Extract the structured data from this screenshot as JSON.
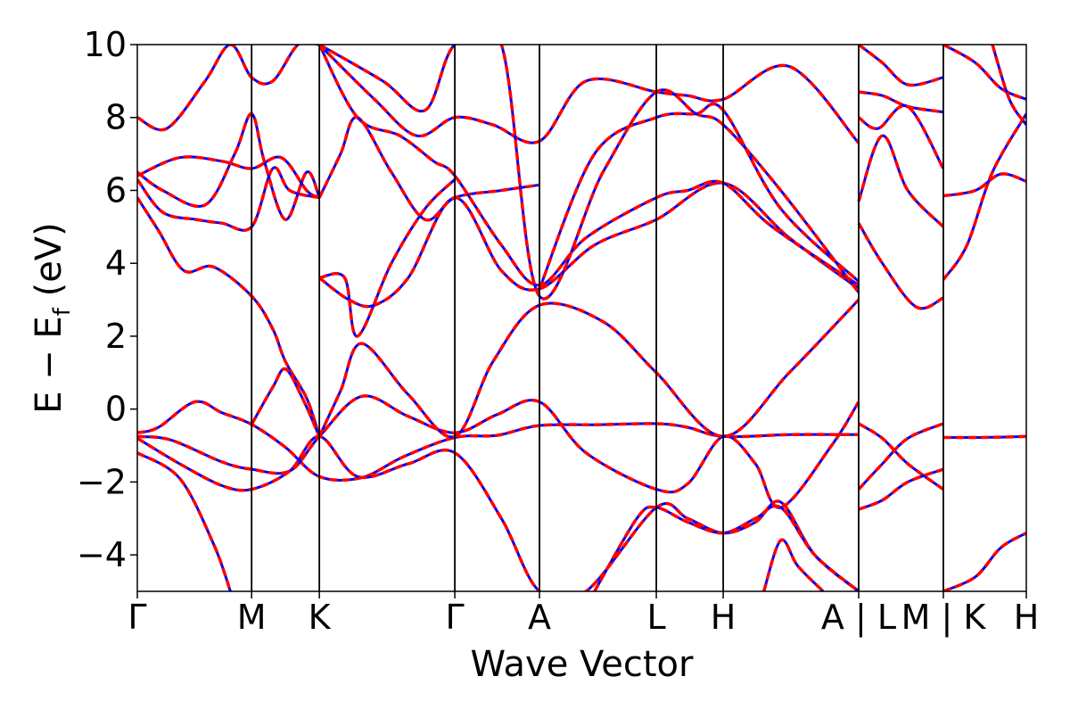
{
  "chart_data": {
    "type": "line",
    "title": "",
    "xlabel": "Wave Vector",
    "ylabel_main": "E − E",
    "ylabel_sub": "f",
    "ylabel_unit": " (eV)",
    "ylim": [
      -5,
      10
    ],
    "yticks": [
      -4,
      -2,
      0,
      2,
      4,
      6,
      8,
      10
    ],
    "ytick_labels": [
      "−4",
      "−2",
      "0",
      "2",
      "4",
      "6",
      "8",
      "10"
    ],
    "x_range": [
      0,
      10.5
    ],
    "high_symmetry_points": [
      {
        "x": 0.0,
        "label": "Γ"
      },
      {
        "x": 1.35,
        "label": "M"
      },
      {
        "x": 2.15,
        "label": "K"
      },
      {
        "x": 3.75,
        "label": "Γ"
      },
      {
        "x": 4.75,
        "label": "A"
      },
      {
        "x": 6.13,
        "label": "L"
      },
      {
        "x": 6.92,
        "label": "H"
      },
      {
        "x": 8.52,
        "label": "A | L"
      },
      {
        "x": 9.52,
        "label": "M | K"
      },
      {
        "x": 10.5,
        "label": "H"
      }
    ],
    "series_colors": {
      "reference": "#0000ff",
      "overlay": "#ff0000"
    },
    "bands": [
      {
        "name": "",
        "x": [
          0,
          0.25,
          0.68,
          1.0,
          1.35,
          1.75,
          2.15,
          2.65,
          3.15,
          3.75,
          4.25,
          4.75,
          5.45,
          6.13,
          6.5,
          6.92,
          7.72,
          8.52
        ],
        "y": [
          -0.65,
          -0.5,
          0.2,
          -0.1,
          -0.42,
          -1.05,
          -1.85,
          -1.88,
          -1.3,
          -0.78,
          -0.72,
          -0.45,
          -0.43,
          -0.4,
          -0.5,
          -0.75,
          -0.7,
          -0.7
        ]
      },
      {
        "name": "",
        "x": [
          0,
          0.4,
          1.0,
          1.35,
          1.8,
          2.15,
          2.65,
          3.2,
          3.75,
          4.25,
          4.75,
          5.3,
          6.13,
          6.5,
          6.92,
          7.3,
          7.6,
          8.2,
          8.52
        ],
        "y": [
          -0.75,
          -0.85,
          -1.45,
          -1.65,
          -1.7,
          -0.75,
          0.35,
          -0.2,
          -0.65,
          -0.15,
          0.2,
          -1.2,
          -2.2,
          -2.05,
          -0.75,
          -1.5,
          -2.7,
          -1.0,
          0.2
        ]
      },
      {
        "name": "",
        "x": [
          0,
          0.5,
          1.0,
          1.35,
          1.8,
          2.15,
          2.6,
          3.2,
          3.75,
          4.3,
          4.75,
          5.3,
          6.13,
          6.5,
          6.92,
          7.3,
          7.6,
          8.0,
          8.52
        ],
        "y": [
          -0.8,
          -1.5,
          -2.1,
          -2.2,
          -1.7,
          -0.75,
          -1.85,
          -1.5,
          -1.2,
          -3.0,
          -5.0,
          -5.0,
          -2.7,
          -3.0,
          -3.4,
          -3.1,
          -2.55,
          -4.0,
          -5.0
        ]
      },
      {
        "name": "",
        "x": [
          0,
          0.5,
          0.9,
          1.1
        ],
        "y": [
          -1.2,
          -1.9,
          -3.7,
          -5.0
        ]
      },
      {
        "name": "",
        "x": [
          0,
          0.25,
          0.55,
          0.9,
          1.35,
          1.6,
          1.75,
          2.0,
          2.15
        ],
        "y": [
          5.8,
          4.9,
          3.8,
          3.9,
          3.1,
          2.2,
          1.3,
          0.3,
          -0.75
        ]
      },
      {
        "name": "",
        "x": [
          1.35,
          1.6,
          1.75,
          1.95,
          2.15
        ],
        "y": [
          -0.42,
          0.6,
          1.1,
          0.3,
          -0.75
        ]
      },
      {
        "name": "",
        "x": [
          2.15,
          2.4,
          2.65,
          3.2,
          3.75,
          4.2,
          4.75,
          5.5,
          6.13,
          6.92,
          7.7,
          8.52
        ],
        "y": [
          -0.75,
          0.5,
          1.8,
          0.4,
          -0.75,
          1.3,
          2.85,
          2.4,
          1.0,
          -0.75,
          1.0,
          3.0
        ]
      },
      {
        "name": "",
        "x": [
          2.15,
          2.5,
          2.8,
          3.2,
          3.75,
          4.3,
          4.75,
          5.4,
          6.13,
          6.92,
          7.7,
          8.52
        ],
        "y": [
          3.6,
          3.0,
          2.85,
          3.6,
          5.8,
          3.8,
          3.3,
          4.5,
          5.2,
          6.2,
          4.7,
          3.3
        ]
      },
      {
        "name": "",
        "x": [
          2.15,
          2.45,
          2.6,
          3.0,
          3.4,
          3.75
        ],
        "y": [
          3.6,
          3.6,
          2.0,
          4.0,
          5.5,
          6.3
        ]
      },
      {
        "name": "",
        "x": [
          0,
          0.3,
          0.7,
          1.0,
          1.35,
          1.6,
          1.8,
          2.15
        ],
        "y": [
          6.3,
          5.4,
          5.2,
          5.1,
          5.0,
          6.6,
          6.0,
          5.8
        ]
      },
      {
        "name": "",
        "x": [
          0,
          0.5,
          1.0,
          1.35,
          1.7,
          2.0,
          2.15
        ],
        "y": [
          6.4,
          6.9,
          6.8,
          6.6,
          6.9,
          6.0,
          5.8
        ]
      },
      {
        "name": "",
        "x": [
          0,
          0.3,
          0.8,
          1.15,
          1.35,
          1.5,
          1.75,
          2.0,
          2.15
        ],
        "y": [
          6.5,
          6.0,
          5.6,
          7.0,
          8.1,
          6.8,
          5.2,
          6.5,
          5.8
        ]
      },
      {
        "name": "",
        "x": [
          0,
          0.35,
          0.8,
          1.1,
          1.35,
          1.6,
          1.9,
          2.15
        ],
        "y": [
          8.0,
          7.7,
          9.0,
          10.0,
          9.1,
          9.0,
          10.0,
          10.0
        ]
      },
      {
        "name": "",
        "x": [
          2.15,
          2.4,
          2.6,
          3.0,
          3.4,
          3.75,
          4.3,
          4.75
        ],
        "y": [
          5.8,
          7.0,
          8.0,
          6.5,
          5.2,
          5.8,
          6.0,
          6.15
        ]
      },
      {
        "name": "",
        "x": [
          2.15,
          2.6,
          3.1,
          3.5,
          3.75,
          4.3,
          4.75,
          5.3,
          6.13,
          6.5,
          6.92,
          7.5,
          8.52
        ],
        "y": [
          10.0,
          8.0,
          7.5,
          6.8,
          6.4,
          4.5,
          3.4,
          4.7,
          5.8,
          6.0,
          6.2,
          5.0,
          3.4
        ]
      },
      {
        "name": "",
        "x": [
          2.15,
          2.8,
          3.3,
          3.75,
          4.2,
          4.75,
          5.3,
          6.13,
          6.5,
          6.92,
          7.7,
          8.52
        ],
        "y": [
          10.0,
          8.5,
          7.5,
          8.0,
          7.8,
          7.35,
          9.0,
          8.7,
          8.6,
          8.5,
          9.4,
          7.3
        ]
      },
      {
        "name": "",
        "x": [
          2.15,
          2.9,
          3.4,
          3.75,
          4.3,
          4.75,
          5.5,
          6.13,
          6.6,
          6.92,
          7.6,
          8.52
        ],
        "y": [
          10.0,
          9.0,
          8.2,
          10.0,
          10.0,
          3.1,
          6.5,
          8.7,
          8.1,
          7.8,
          6.0,
          3.2
        ]
      },
      {
        "name": "",
        "x": [
          4.75,
          5.4,
          6.13,
          6.6,
          6.92,
          7.6,
          8.52
        ],
        "y": [
          3.3,
          7.0,
          8.0,
          8.1,
          8.2,
          5.5,
          3.5
        ]
      },
      {
        "name": "",
        "x": [
          5.4,
          5.9,
          6.13,
          6.5,
          6.92,
          7.3,
          7.6,
          8.0,
          8.52
        ],
        "y": [
          -5.0,
          -3.0,
          -2.7,
          -3.1,
          -3.4,
          -3.0,
          -2.7,
          -4.0,
          -5.0
        ]
      },
      {
        "name": "",
        "x": [
          7.4,
          7.6,
          7.8,
          8.1
        ],
        "y": [
          -5.0,
          -3.6,
          -4.3,
          -5.0
        ]
      },
      {
        "name": "",
        "x": [
          8.52,
          8.8,
          9.1,
          9.52
        ],
        "y": [
          -0.4,
          -0.8,
          -1.5,
          -2.2
        ]
      },
      {
        "name": "",
        "x": [
          8.52,
          8.8,
          9.1,
          9.52
        ],
        "y": [
          -2.2,
          -1.5,
          -0.8,
          -0.4
        ]
      },
      {
        "name": "",
        "x": [
          8.52,
          8.8,
          9.1,
          9.52
        ],
        "y": [
          -2.75,
          -2.5,
          -2.0,
          -1.65
        ]
      },
      {
        "name": "",
        "x": [
          8.52,
          8.8,
          9.2,
          9.52
        ],
        "y": [
          5.1,
          4.0,
          2.8,
          3.05
        ]
      },
      {
        "name": "",
        "x": [
          8.52,
          8.8,
          9.1,
          9.52
        ],
        "y": [
          5.7,
          7.5,
          6.0,
          5.0
        ]
      },
      {
        "name": "",
        "x": [
          8.52,
          8.75,
          9.1,
          9.52
        ],
        "y": [
          8.0,
          7.7,
          8.3,
          6.6
        ]
      },
      {
        "name": "",
        "x": [
          8.52,
          8.8,
          9.1,
          9.52
        ],
        "y": [
          8.7,
          8.6,
          8.3,
          8.15
        ]
      },
      {
        "name": "",
        "x": [
          8.52,
          8.8,
          9.1,
          9.52
        ],
        "y": [
          10.0,
          9.5,
          8.9,
          9.1
        ]
      },
      {
        "name": "",
        "x": [
          9.52,
          9.9,
          10.2,
          10.5
        ],
        "y": [
          -0.78,
          -0.78,
          -0.77,
          -0.75
        ]
      },
      {
        "name": "",
        "x": [
          9.52,
          9.9,
          10.2,
          10.5
        ],
        "y": [
          -5.0,
          -4.6,
          -3.8,
          -3.4
        ]
      },
      {
        "name": "",
        "x": [
          9.52,
          9.8,
          10.1,
          10.5
        ],
        "y": [
          3.55,
          4.5,
          6.5,
          8.1
        ]
      },
      {
        "name": "",
        "x": [
          9.52,
          9.9,
          10.2,
          10.5
        ],
        "y": [
          5.85,
          6.0,
          6.45,
          6.25
        ]
      },
      {
        "name": "",
        "x": [
          9.52,
          9.9,
          10.2,
          10.5
        ],
        "y": [
          10.0,
          9.5,
          8.8,
          8.5
        ]
      },
      {
        "name": "",
        "x": [
          10.1,
          10.3,
          10.5
        ],
        "y": [
          10.0,
          8.5,
          7.8
        ]
      }
    ]
  }
}
